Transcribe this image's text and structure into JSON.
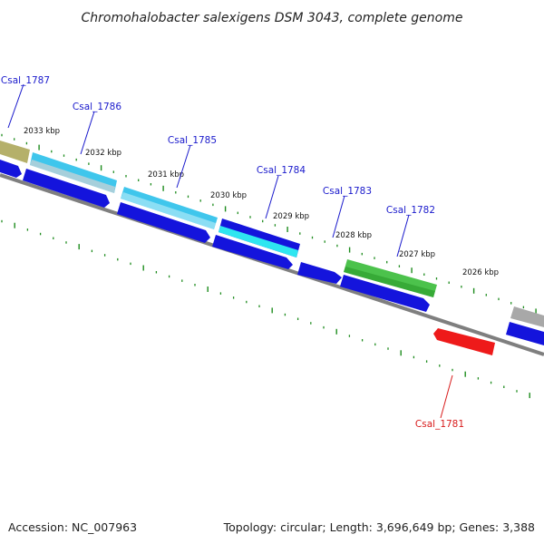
{
  "title": "Chromohalobacter salexigens DSM 3043, complete genome",
  "footer": {
    "accession": "Accession: NC_007963",
    "summary": "Topology: circular; Length: 3,696,649 bp; Genes: 3,388"
  },
  "colors": {
    "backbone": "#7f7f7f",
    "tick": "#1e8c1e",
    "label_forward": "#1a1acc",
    "label_reverse": "#d81b1b"
  },
  "kbp_labels": [
    "2033 kbp",
    "2032 kbp",
    "2031 kbp",
    "2030 kbp",
    "2029 kbp",
    "2028 kbp",
    "2027 kbp",
    "2026 kbp"
  ],
  "gene_labels": [
    {
      "name": "Csal_1787",
      "color": "#1a1acc"
    },
    {
      "name": "Csal_1786",
      "color": "#1a1acc"
    },
    {
      "name": "Csal_1785",
      "color": "#1a1acc"
    },
    {
      "name": "Csal_1784",
      "color": "#1a1acc"
    },
    {
      "name": "Csal_1783",
      "color": "#1a1acc"
    },
    {
      "name": "Csal_1782",
      "color": "#1a1acc"
    },
    {
      "name": "Csal_1781",
      "color": "#d81b1b"
    }
  ],
  "gene_colors": {
    "olive": "#b5b06a",
    "cyan": "#3fc6ec",
    "cyan_light": "#9fe4f6",
    "blue": "#1414dc",
    "green": "#4cc24c",
    "gray": "#a8a8a8",
    "red": "#ee1a1a"
  }
}
